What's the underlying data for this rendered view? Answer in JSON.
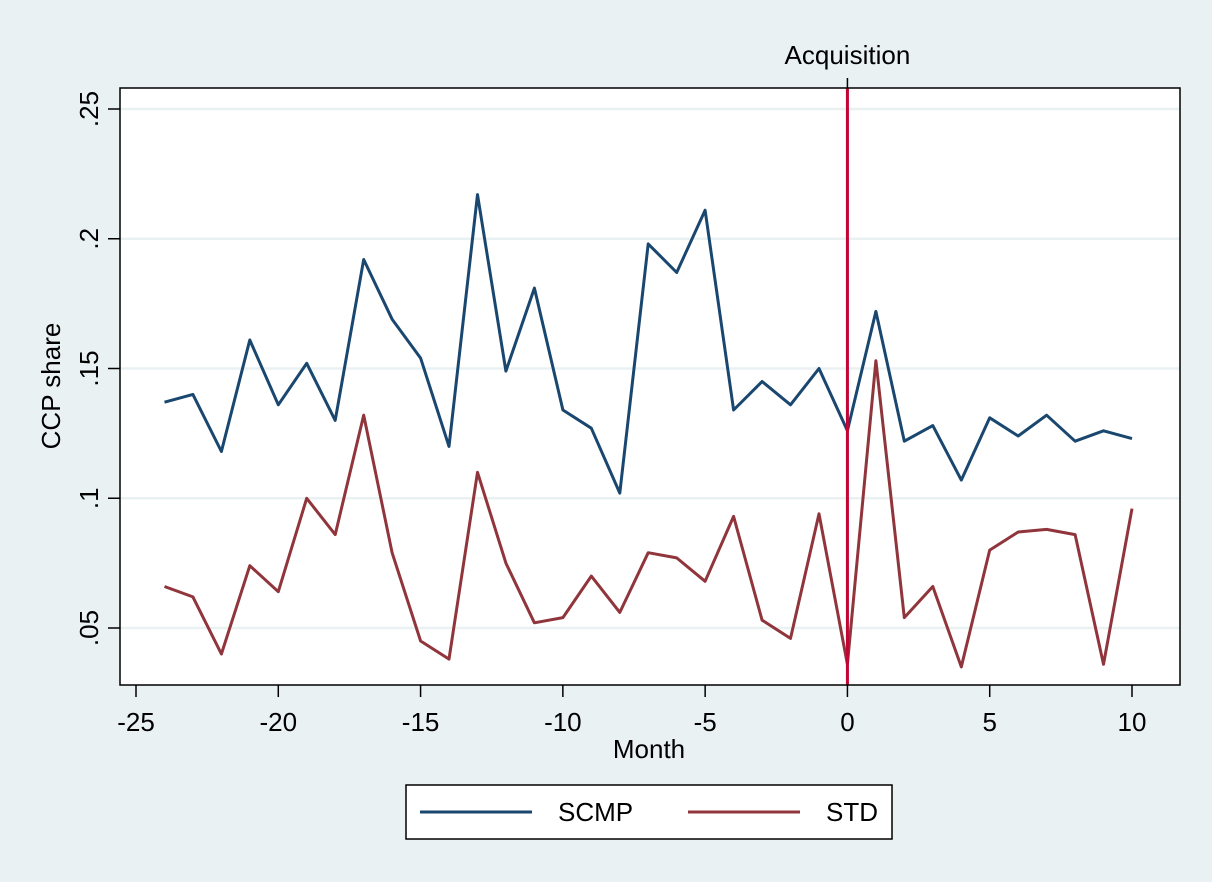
{
  "chart_data": {
    "type": "line",
    "title": "",
    "xlabel": "Month",
    "ylabel": "CCP share",
    "xlim": [
      -26,
      11
    ],
    "ylim": [
      0.032,
      0.255
    ],
    "xticks": [
      -25,
      -20,
      -15,
      -10,
      -5,
      0,
      5,
      10
    ],
    "xtick_labels": [
      "-25",
      "-20",
      "-15",
      "-10",
      "-5",
      "0",
      "5",
      "10"
    ],
    "yticks": [
      0.05,
      0.1,
      0.15,
      0.2,
      0.25
    ],
    "ytick_labels": [
      ".05",
      ".1",
      ".15",
      ".2",
      ".25"
    ],
    "grid": "horizontal",
    "x": [
      -24,
      -23,
      -22,
      -21,
      -20,
      -19,
      -18,
      -17,
      -16,
      -15,
      -14,
      -13,
      -12,
      -11,
      -10,
      -9,
      -8,
      -7,
      -6,
      -5,
      -4,
      -3,
      -2,
      -1,
      0,
      1,
      2,
      3,
      4,
      5,
      6,
      7,
      8,
      9,
      10
    ],
    "series": [
      {
        "name": "SCMP",
        "color": "#1a476f",
        "values": [
          0.137,
          0.14,
          0.118,
          0.161,
          0.136,
          0.152,
          0.13,
          0.192,
          0.169,
          0.154,
          0.12,
          0.217,
          0.149,
          0.181,
          0.134,
          0.127,
          0.102,
          0.198,
          0.187,
          0.211,
          0.134,
          0.145,
          0.136,
          0.15,
          0.126,
          0.172,
          0.122,
          0.128,
          0.107,
          0.131,
          0.124,
          0.132,
          0.122,
          0.126,
          0.123
        ]
      },
      {
        "name": "STD",
        "color": "#90353b",
        "values": [
          0.066,
          0.062,
          0.04,
          0.074,
          0.064,
          0.1,
          0.086,
          0.132,
          0.079,
          0.045,
          0.038,
          0.11,
          0.075,
          0.052,
          0.054,
          0.07,
          0.056,
          0.079,
          0.077,
          0.068,
          0.093,
          0.053,
          0.046,
          0.094,
          0.036,
          0.153,
          0.054,
          0.066,
          0.035,
          0.08,
          0.087,
          0.088,
          0.086,
          0.036,
          0.096
        ]
      }
    ],
    "annotations": [
      {
        "type": "vline",
        "x": 0,
        "color": "#c10534",
        "label": "Acquisition"
      }
    ],
    "legend": {
      "position": "bottom",
      "entries": [
        "SCMP",
        "STD"
      ]
    }
  }
}
